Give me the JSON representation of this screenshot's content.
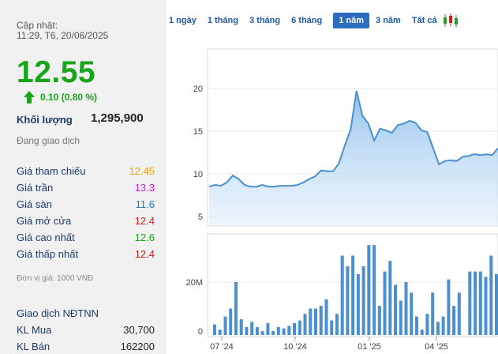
{
  "info": {
    "update_label": "Cập nhật:",
    "update_time": "11:29, T6, 20/06/2025",
    "price": "12.55",
    "change": "0.10 (0.80 %)",
    "volume_label": "Khối lượng",
    "volume_value": "1,295,900",
    "status": "Đang giao dịch"
  },
  "stats": [
    {
      "label": "Giá tham chiếu",
      "value": "12.45",
      "color": "#f2a10c"
    },
    {
      "label": "Giá trần",
      "value": "13.3",
      "color": "#d21fd2"
    },
    {
      "label": "Giá sàn",
      "value": "11.6",
      "color": "#1f75c9"
    },
    {
      "label": "Giá mở cửa",
      "value": "12.4",
      "color": "#d71919"
    },
    {
      "label": "Giá cao nhất",
      "value": "12.6",
      "color": "#19a519"
    },
    {
      "label": "Giá thấp nhất",
      "value": "12.4",
      "color": "#d71919"
    }
  ],
  "unit_note": "Đơn vị giá: 1000 VNĐ",
  "foreign": {
    "title": "Giao dịch NĐTNN",
    "buy_label": "KL Mua",
    "buy_value": "30,700",
    "sell_label": "KL Bán",
    "sell_value": "162200"
  },
  "range_tabs": [
    "1 ngày",
    "1 tháng",
    "3 tháng",
    "6 tháng",
    "1 năm",
    "3 năm",
    "Tất cả"
  ],
  "active_tab": "1 năm",
  "chart_data": [
    {
      "type": "area",
      "ylim": [
        4,
        24
      ],
      "yticks": [
        5,
        10,
        15,
        20
      ],
      "xticks": [
        "07 '24",
        "10 '24",
        "01 '25",
        "04 '25"
      ],
      "values": [
        8.5,
        8.7,
        8.6,
        9.0,
        9.8,
        9.4,
        8.7,
        8.5,
        8.5,
        8.7,
        8.5,
        8.5,
        8.6,
        8.6,
        8.6,
        8.7,
        9.0,
        9.4,
        9.7,
        10.4,
        10.3,
        10.3,
        11.2,
        13.3,
        15.2,
        19.7,
        16.8,
        15.9,
        13.9,
        15.3,
        15.1,
        14.8,
        15.7,
        15.9,
        16.2,
        16.0,
        15.1,
        14.9,
        13.0,
        11.1,
        11.5,
        11.6,
        11.5,
        12.0,
        12.1,
        12.3,
        12.2,
        12.3,
        12.2,
        13.0
      ],
      "color": "#4a8fce"
    },
    {
      "type": "bar",
      "ylabel_ticks": [
        "0",
        "20M"
      ],
      "ylim": [
        0,
        35
      ],
      "values": [
        4,
        2,
        7,
        10,
        20,
        6,
        3,
        5,
        3,
        1.5,
        4.5,
        1.5,
        3,
        2.5,
        3.5,
        4.5,
        5.5,
        8,
        10,
        10,
        11,
        13.5,
        5.5,
        8,
        30,
        26,
        30,
        23,
        26,
        34,
        34,
        11,
        24,
        28,
        19,
        13,
        20,
        16,
        7,
        2,
        8,
        16,
        5,
        7,
        21,
        11,
        16,
        0,
        24,
        24,
        24,
        22,
        30,
        23
      ],
      "color": "#4a8fce"
    }
  ]
}
